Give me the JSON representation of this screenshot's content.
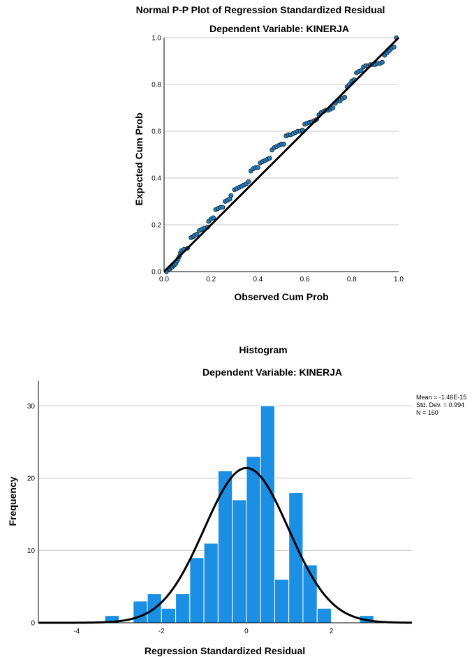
{
  "chart_data": [
    {
      "type": "scatter",
      "title": "Normal P-P Plot of Regression Standardized Residual",
      "subtitle": "Dependent Variable: KINERJA",
      "xlabel": "Observed Cum Prob",
      "ylabel": "Expected Cum Prob",
      "xlim": [
        0,
        1
      ],
      "ylim": [
        0,
        1
      ],
      "xticks": [
        "0.0",
        "0.2",
        "0.4",
        "0.6",
        "0.8",
        "1.0"
      ],
      "yticks": [
        "0.0",
        "0.2",
        "0.4",
        "0.6",
        "0.8",
        "1.0"
      ],
      "grid": "horizontal",
      "reference_line": [
        [
          0,
          0
        ],
        [
          1,
          1
        ]
      ],
      "point_color": "#1f7fc4",
      "points": [
        [
          0.01,
          0.0
        ],
        [
          0.02,
          0.01
        ],
        [
          0.025,
          0.012
        ],
        [
          0.03,
          0.018
        ],
        [
          0.035,
          0.02
        ],
        [
          0.04,
          0.025
        ],
        [
          0.045,
          0.03
        ],
        [
          0.05,
          0.035
        ],
        [
          0.055,
          0.045
        ],
        [
          0.06,
          0.055
        ],
        [
          0.065,
          0.065
        ],
        [
          0.07,
          0.08
        ],
        [
          0.075,
          0.09
        ],
        [
          0.085,
          0.095
        ],
        [
          0.1,
          0.1
        ],
        [
          0.115,
          0.145
        ],
        [
          0.125,
          0.15
        ],
        [
          0.13,
          0.155
        ],
        [
          0.14,
          0.16
        ],
        [
          0.15,
          0.175
        ],
        [
          0.16,
          0.18
        ],
        [
          0.17,
          0.185
        ],
        [
          0.185,
          0.19
        ],
        [
          0.19,
          0.215
        ],
        [
          0.2,
          0.225
        ],
        [
          0.21,
          0.23
        ],
        [
          0.22,
          0.265
        ],
        [
          0.23,
          0.27
        ],
        [
          0.24,
          0.275
        ],
        [
          0.25,
          0.275
        ],
        [
          0.26,
          0.3
        ],
        [
          0.27,
          0.305
        ],
        [
          0.28,
          0.31
        ],
        [
          0.285,
          0.325
        ],
        [
          0.3,
          0.35
        ],
        [
          0.31,
          0.355
        ],
        [
          0.32,
          0.36
        ],
        [
          0.33,
          0.365
        ],
        [
          0.34,
          0.37
        ],
        [
          0.35,
          0.375
        ],
        [
          0.36,
          0.385
        ],
        [
          0.37,
          0.43
        ],
        [
          0.38,
          0.44
        ],
        [
          0.39,
          0.445
        ],
        [
          0.4,
          0.445
        ],
        [
          0.41,
          0.465
        ],
        [
          0.42,
          0.47
        ],
        [
          0.43,
          0.475
        ],
        [
          0.44,
          0.48
        ],
        [
          0.45,
          0.485
        ],
        [
          0.46,
          0.52
        ],
        [
          0.47,
          0.53
        ],
        [
          0.48,
          0.535
        ],
        [
          0.49,
          0.54
        ],
        [
          0.5,
          0.545
        ],
        [
          0.51,
          0.545
        ],
        [
          0.52,
          0.58
        ],
        [
          0.53,
          0.585
        ],
        [
          0.54,
          0.585
        ],
        [
          0.55,
          0.59
        ],
        [
          0.56,
          0.595
        ],
        [
          0.57,
          0.6
        ],
        [
          0.58,
          0.6
        ],
        [
          0.59,
          0.605
        ],
        [
          0.6,
          0.63
        ],
        [
          0.61,
          0.635
        ],
        [
          0.62,
          0.638
        ],
        [
          0.63,
          0.64
        ],
        [
          0.64,
          0.645
        ],
        [
          0.65,
          0.65
        ],
        [
          0.66,
          0.67
        ],
        [
          0.67,
          0.68
        ],
        [
          0.68,
          0.685
        ],
        [
          0.69,
          0.69
        ],
        [
          0.7,
          0.69
        ],
        [
          0.71,
          0.695
        ],
        [
          0.72,
          0.7
        ],
        [
          0.73,
          0.72
        ],
        [
          0.74,
          0.73
        ],
        [
          0.75,
          0.73
        ],
        [
          0.76,
          0.74
        ],
        [
          0.77,
          0.745
        ],
        [
          0.78,
          0.79
        ],
        [
          0.79,
          0.8
        ],
        [
          0.8,
          0.815
        ],
        [
          0.81,
          0.82
        ],
        [
          0.82,
          0.85
        ],
        [
          0.83,
          0.855
        ],
        [
          0.84,
          0.86
        ],
        [
          0.85,
          0.875
        ],
        [
          0.86,
          0.88
        ],
        [
          0.87,
          0.88
        ],
        [
          0.88,
          0.885
        ],
        [
          0.89,
          0.885
        ],
        [
          0.9,
          0.885
        ],
        [
          0.91,
          0.89
        ],
        [
          0.92,
          0.89
        ],
        [
          0.93,
          0.895
        ],
        [
          0.94,
          0.925
        ],
        [
          0.95,
          0.935
        ],
        [
          0.96,
          0.945
        ],
        [
          0.97,
          0.955
        ],
        [
          0.98,
          0.96
        ],
        [
          0.99,
          1.0
        ]
      ]
    },
    {
      "type": "bar",
      "title": "Histogram",
      "subtitle": "Dependent Variable: KINERJA",
      "xlabel": "Regression Standardized Residual",
      "ylabel": "Frequency",
      "xlim": [
        -4.9,
        3.9
      ],
      "ylim": [
        0,
        33.5
      ],
      "xticks": [
        "-4",
        "-2",
        "0",
        "2"
      ],
      "yticks": [
        "0",
        "10",
        "20",
        "30"
      ],
      "grid": "horizontal",
      "bar_color": "#1a8fe3",
      "bin_width": 0.3333,
      "bins": [
        {
          "start": -3.3333,
          "count": 1
        },
        {
          "start": -3.0,
          "count": 0
        },
        {
          "start": -2.6667,
          "count": 3
        },
        {
          "start": -2.3333,
          "count": 4
        },
        {
          "start": -2.0,
          "count": 2
        },
        {
          "start": -1.6667,
          "count": 4
        },
        {
          "start": -1.3333,
          "count": 9
        },
        {
          "start": -1.0,
          "count": 11
        },
        {
          "start": -0.6667,
          "count": 21
        },
        {
          "start": -0.3333,
          "count": 17
        },
        {
          "start": 0.0,
          "count": 23
        },
        {
          "start": 0.3333,
          "count": 30
        },
        {
          "start": 0.6667,
          "count": 6
        },
        {
          "start": 1.0,
          "count": 18
        },
        {
          "start": 1.3333,
          "count": 8
        },
        {
          "start": 1.6667,
          "count": 2
        },
        {
          "start": 2.0,
          "count": 0
        },
        {
          "start": 2.3333,
          "count": 0
        },
        {
          "start": 2.6667,
          "count": 1
        }
      ],
      "normal_curve": {
        "mean": -1.46e-15,
        "sd": 0.994,
        "n": 160
      },
      "stats": [
        "Mean = -1.46E-15",
        "Std. Dev. = 0.994",
        "N = 160"
      ]
    }
  ]
}
